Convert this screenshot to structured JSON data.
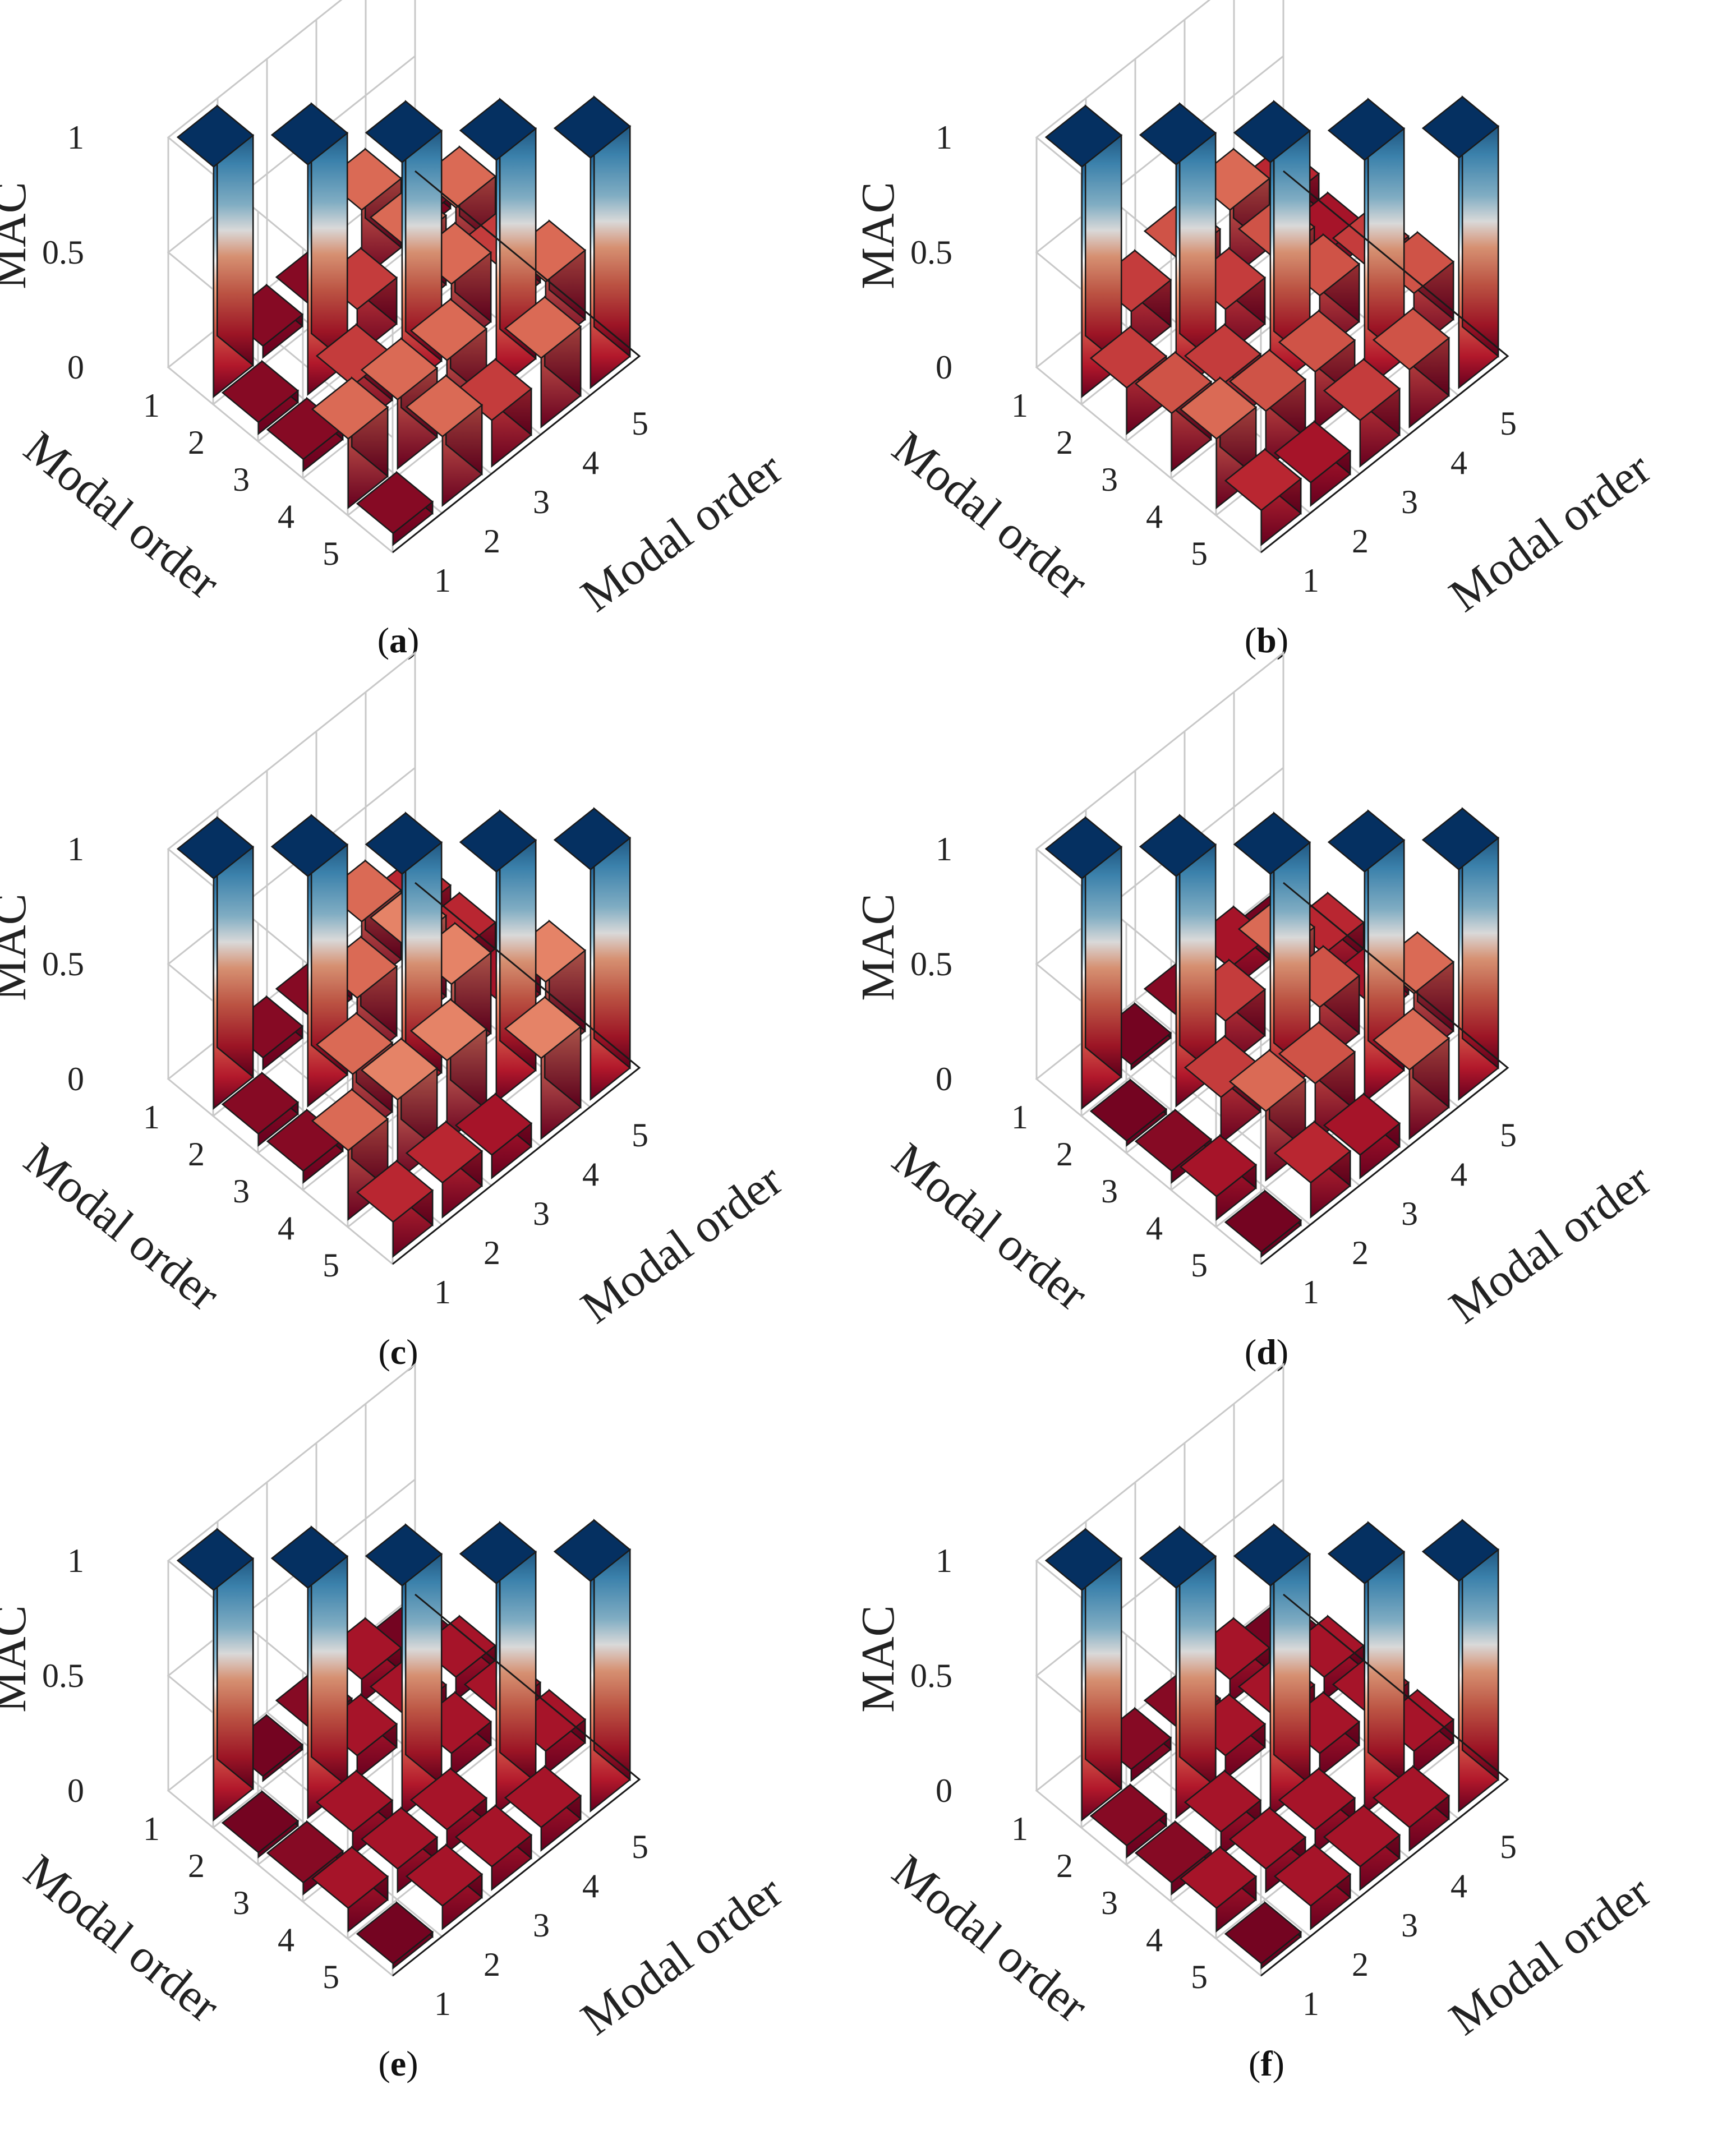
{
  "colors": {
    "scale_low": "#67001f",
    "scale_mid_low": "#f4a582",
    "scale_mid": "#f7f7f7",
    "scale_mid_high": "#4393c3",
    "scale_high": "#053061",
    "edge": "#1a1a1a",
    "grid": "#c8c8c8"
  },
  "chart_data": [
    {
      "type": "bar3d",
      "panel_label": "a",
      "zlabel": "MAC",
      "xlabel": "Modal order",
      "ylabel": "Modal order",
      "x_ticks": [
        "1",
        "2",
        "3",
        "4",
        "5"
      ],
      "y_ticks": [
        "1",
        "2",
        "3",
        "4",
        "5"
      ],
      "z_ticks": [
        "0",
        "0.5",
        "1"
      ],
      "zlim": [
        0,
        1
      ],
      "values": [
        [
          1.0,
          0.05,
          0.05,
          0.3,
          0.05
        ],
        [
          0.05,
          1.0,
          0.2,
          0.3,
          0.3
        ],
        [
          0.05,
          0.2,
          1.0,
          0.3,
          0.2
        ],
        [
          0.3,
          0.3,
          0.3,
          1.0,
          0.3
        ],
        [
          0.05,
          0.3,
          0.2,
          0.3,
          1.0
        ]
      ]
    },
    {
      "type": "bar3d",
      "panel_label": "b",
      "zlabel": "MAC",
      "xlabel": "Modal order",
      "ylabel": "Modal order",
      "x_ticks": [
        "1",
        "2",
        "3",
        "4",
        "5"
      ],
      "y_ticks": [
        "1",
        "2",
        "3",
        "4",
        "5"
      ],
      "z_ticks": [
        "0",
        "0.5",
        "1"
      ],
      "zlim": [
        0,
        1
      ],
      "values": [
        [
          1.0,
          0.2,
          0.25,
          0.3,
          0.15
        ],
        [
          0.2,
          1.0,
          0.2,
          0.25,
          0.1
        ],
        [
          0.25,
          0.2,
          1.0,
          0.25,
          0.2
        ],
        [
          0.3,
          0.25,
          0.25,
          1.0,
          0.25
        ],
        [
          0.15,
          0.1,
          0.2,
          0.25,
          1.0
        ]
      ]
    },
    {
      "type": "bar3d",
      "panel_label": "c",
      "zlabel": "MAC",
      "xlabel": "Modal order",
      "ylabel": "Modal order",
      "x_ticks": [
        "1",
        "2",
        "3",
        "4",
        "5"
      ],
      "y_ticks": [
        "1",
        "2",
        "3",
        "4",
        "5"
      ],
      "z_ticks": [
        "0",
        "0.5",
        "1"
      ],
      "zlim": [
        0,
        1
      ],
      "values": [
        [
          1.0,
          0.05,
          0.05,
          0.3,
          0.15
        ],
        [
          0.05,
          1.0,
          0.3,
          0.35,
          0.15
        ],
        [
          0.05,
          0.3,
          1.0,
          0.35,
          0.1
        ],
        [
          0.3,
          0.35,
          0.35,
          1.0,
          0.35
        ],
        [
          0.15,
          0.15,
          0.1,
          0.35,
          1.0
        ]
      ]
    },
    {
      "type": "bar3d",
      "panel_label": "d",
      "zlabel": "MAC",
      "xlabel": "Modal order",
      "ylabel": "Modal order",
      "x_ticks": [
        "1",
        "2",
        "3",
        "4",
        "5"
      ],
      "y_ticks": [
        "1",
        "2",
        "3",
        "4",
        "5"
      ],
      "z_ticks": [
        "0",
        "0.5",
        "1"
      ],
      "zlim": [
        0,
        1
      ],
      "values": [
        [
          1.0,
          0.02,
          0.05,
          0.1,
          0.02
        ],
        [
          0.02,
          1.0,
          0.2,
          0.3,
          0.15
        ],
        [
          0.05,
          0.2,
          1.0,
          0.25,
          0.1
        ],
        [
          0.1,
          0.3,
          0.25,
          1.0,
          0.3
        ],
        [
          0.02,
          0.15,
          0.1,
          0.3,
          1.0
        ]
      ]
    },
    {
      "type": "bar3d",
      "panel_label": "e",
      "zlabel": "MAC",
      "xlabel": "Modal order",
      "ylabel": "Modal order",
      "x_ticks": [
        "1",
        "2",
        "3",
        "4",
        "5"
      ],
      "y_ticks": [
        "1",
        "2",
        "3",
        "4",
        "5"
      ],
      "z_ticks": [
        "0",
        "0.5",
        "1"
      ],
      "zlim": [
        0,
        1
      ],
      "values": [
        [
          1.0,
          0.02,
          0.05,
          0.1,
          0.02
        ],
        [
          0.02,
          1.0,
          0.1,
          0.1,
          0.1
        ],
        [
          0.05,
          0.1,
          1.0,
          0.1,
          0.1
        ],
        [
          0.1,
          0.1,
          0.1,
          1.0,
          0.1
        ],
        [
          0.02,
          0.1,
          0.1,
          0.1,
          1.0
        ]
      ]
    },
    {
      "type": "bar3d",
      "panel_label": "f",
      "zlabel": "MAC",
      "xlabel": "Modal order",
      "ylabel": "Modal order",
      "x_ticks": [
        "1",
        "2",
        "3",
        "4",
        "5"
      ],
      "y_ticks": [
        "1",
        "2",
        "3",
        "4",
        "5"
      ],
      "z_ticks": [
        "0",
        "0.5",
        "1"
      ],
      "zlim": [
        0,
        1
      ],
      "values": [
        [
          1.0,
          0.05,
          0.05,
          0.1,
          0.02
        ],
        [
          0.05,
          1.0,
          0.1,
          0.1,
          0.1
        ],
        [
          0.05,
          0.1,
          1.0,
          0.1,
          0.1
        ],
        [
          0.1,
          0.1,
          0.1,
          1.0,
          0.1
        ],
        [
          0.02,
          0.1,
          0.1,
          0.1,
          1.0
        ]
      ]
    }
  ]
}
